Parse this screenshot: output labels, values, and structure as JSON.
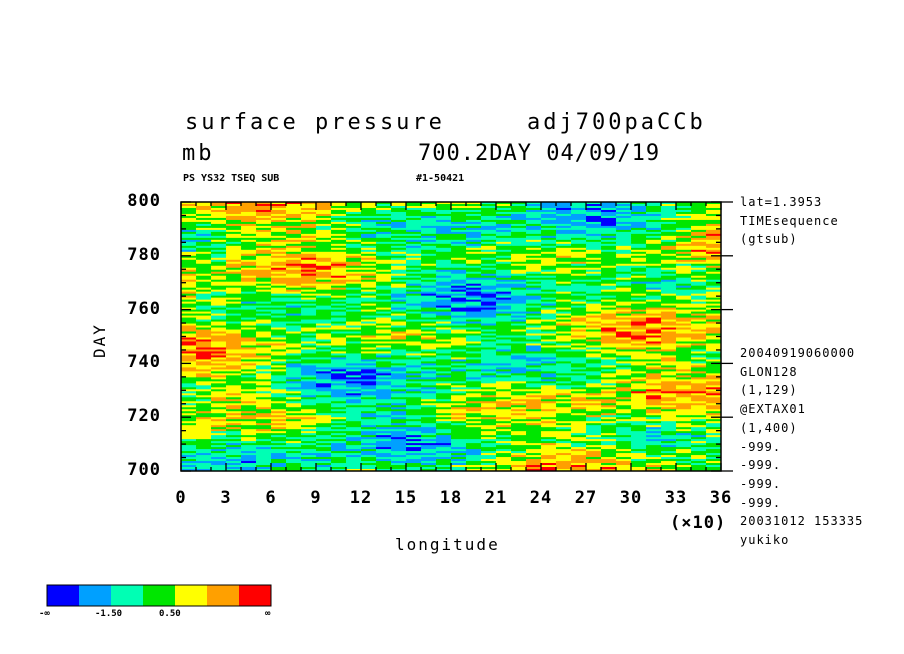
{
  "header": {
    "title_left": "surface pressure",
    "title_right": "adj700paCCb",
    "unit": "mb",
    "subtitle_right": "700.2DAY 04/09/19",
    "sub_left": "PS YS32 TSEQ SUB",
    "sub_right": "#1-50421"
  },
  "side_info": {
    "top": [
      "lat=1.3953",
      "TIMEsequence",
      "(gtsub)"
    ],
    "bottom": [
      "20040919060000",
      "GLON128",
      "(1,129)",
      "@EXTAX01",
      "(1,400)",
      "-999.",
      "-999.",
      "-999.",
      "-999.",
      "20031012 153335",
      "yukiko"
    ]
  },
  "chart_data": {
    "type": "heatmap",
    "xlabel": "longitude",
    "ylabel": "DAY",
    "x_multiplier": "(×10)",
    "xlim": [
      0,
      36
    ],
    "ylim": [
      700,
      800
    ],
    "x_ticks": [
      0,
      3,
      6,
      9,
      12,
      15,
      18,
      21,
      24,
      27,
      30,
      33,
      36
    ],
    "x_tick_labels": [
      "0",
      "3",
      "6",
      "9",
      "12",
      "15",
      "18",
      "21",
      "24",
      "27",
      "30",
      "33",
      "36"
    ],
    "y_ticks": [
      700,
      720,
      740,
      760,
      780,
      800
    ],
    "y_tick_labels": [
      "700",
      "720",
      "740",
      "760",
      "780",
      "800"
    ],
    "colorbar": {
      "colors": [
        "#0000ff",
        "#00a0ff",
        "#00ffb4",
        "#00e600",
        "#ffff00",
        "#ffa000",
        "#ff0000"
      ],
      "labels": [
        "-∞",
        "-1.50",
        "0.50",
        "∞"
      ]
    }
  }
}
